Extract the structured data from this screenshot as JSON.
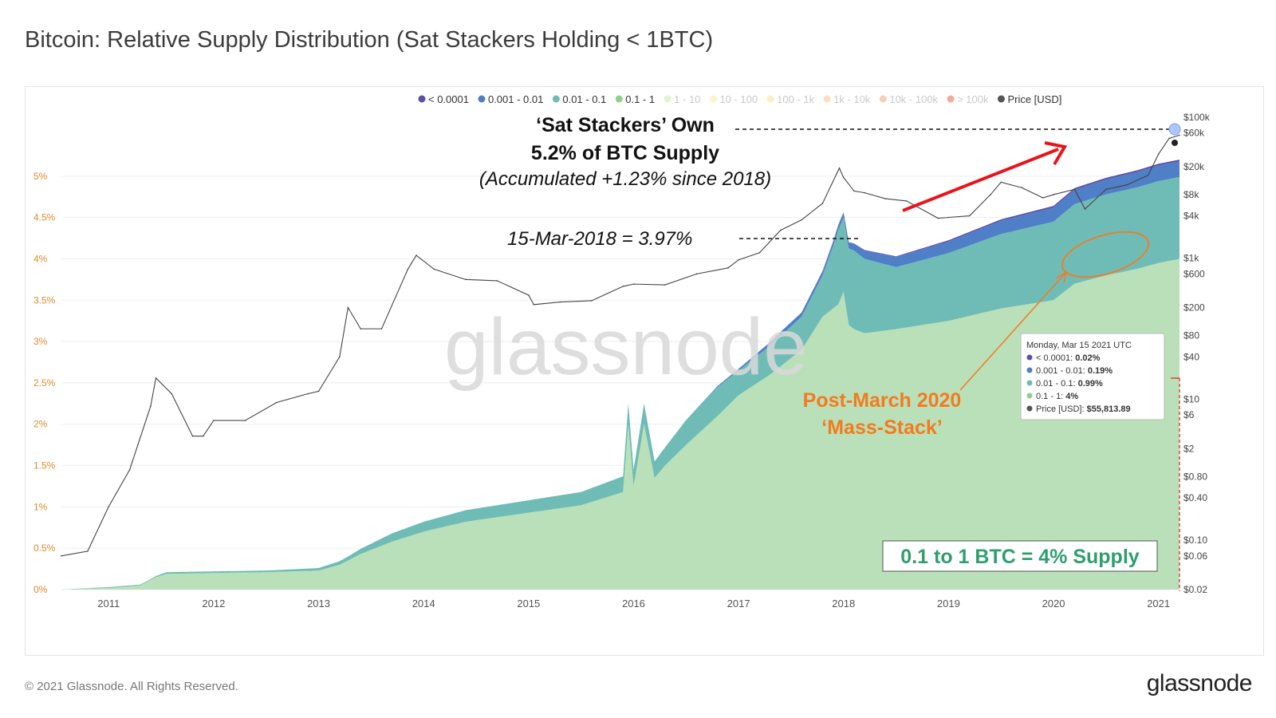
{
  "title": "Bitcoin: Relative Supply Distribution (Sat Stackers Holding < 1BTC)",
  "footer": {
    "copyright": "© 2021 Glassnode. All Rights Reserved.",
    "logo": "glassnode"
  },
  "watermark": "glassnode",
  "colors": {
    "lt_0001": "#5b4fa8",
    "b001_01": "#4f7fc7",
    "b01_1": "#6fbcb6",
    "b1_10": "#a8d8a8",
    "price": "#555555",
    "annotation_red": "#e8141b",
    "annotation_orange": "#f47a1f",
    "annotation_green": "#2f9e6f",
    "left_axis": "#e08a2c"
  },
  "chart_data": {
    "type": "area",
    "legend": [
      {
        "label": "< 0.0001",
        "color": "#5b4fa8",
        "active": true
      },
      {
        "label": "0.001 - 0.01",
        "color": "#4f7fc7",
        "active": true
      },
      {
        "label": "0.01 - 0.1",
        "color": "#6fbcb6",
        "active": true
      },
      {
        "label": "0.1 - 1",
        "color": "#8fd08a",
        "active": true
      },
      {
        "label": "1 - 10",
        "color": "#c9e89b",
        "active": false
      },
      {
        "label": "10 - 100",
        "color": "#f0ee9a",
        "active": false
      },
      {
        "label": "100 - 1k",
        "color": "#f7e08a",
        "active": false
      },
      {
        "label": "1k - 10k",
        "color": "#f5c27a",
        "active": false
      },
      {
        "label": "10k - 100k",
        "color": "#f3a06a",
        "active": false
      },
      {
        "label": "> 100k",
        "color": "#e8553b",
        "active": false
      },
      {
        "label": "Price [USD]",
        "color": "#555555",
        "active": true
      }
    ],
    "x_ticks": [
      "2011",
      "2012",
      "2013",
      "2014",
      "2015",
      "2016",
      "2017",
      "2018",
      "2019",
      "2020",
      "2021"
    ],
    "xlim": [
      2010.55,
      2021.2
    ],
    "left_axis": {
      "ticks": [
        "0%",
        "0.5%",
        "1%",
        "1.5%",
        "2%",
        "2.5%",
        "3%",
        "3.5%",
        "4%",
        "4.5%",
        "5%"
      ],
      "ylim": [
        0,
        5.5
      ]
    },
    "right_axis": {
      "scale": "log",
      "ticks": [
        "$0.02",
        "$0.06",
        "$0.10",
        "$0.40",
        "$0.80",
        "$2",
        "$6",
        "$10",
        "$40",
        "$80",
        "$200",
        "$600",
        "$1k",
        "$4k",
        "$8k",
        "$20k",
        "$60k",
        "$100k"
      ]
    },
    "series": [
      {
        "name": "0.1 - 1",
        "unit": "%",
        "x": [
          2010.55,
          2011.0,
          2011.3,
          2011.45,
          2011.55,
          2012.0,
          2012.5,
          2013.0,
          2013.2,
          2013.4,
          2013.7,
          2014.0,
          2014.4,
          2015.0,
          2015.5,
          2015.9,
          2015.95,
          2016.0,
          2016.1,
          2016.2,
          2016.3,
          2016.5,
          2016.8,
          2017.0,
          2017.3,
          2017.6,
          2017.8,
          2017.95,
          2018.0,
          2018.05,
          2018.1,
          2018.2,
          2018.5,
          2019.0,
          2019.5,
          2020.0,
          2020.2,
          2020.5,
          2020.8,
          2021.0,
          2021.2
        ],
        "values": [
          0,
          0.02,
          0.05,
          0.15,
          0.19,
          0.2,
          0.21,
          0.23,
          0.3,
          0.43,
          0.58,
          0.7,
          0.82,
          0.93,
          1.02,
          1.18,
          2.0,
          1.25,
          2.0,
          1.35,
          1.5,
          1.75,
          2.1,
          2.35,
          2.6,
          2.9,
          3.3,
          3.45,
          3.6,
          3.2,
          3.15,
          3.1,
          3.15,
          3.25,
          3.4,
          3.5,
          3.7,
          3.8,
          3.88,
          3.95,
          4.0
        ]
      },
      {
        "name": "0.01 - 0.1",
        "unit": "%",
        "x": [
          2010.55,
          2011.0,
          2011.4,
          2011.55,
          2012.0,
          2012.5,
          2013.0,
          2013.3,
          2013.7,
          2014.0,
          2014.4,
          2015.0,
          2015.5,
          2015.9,
          2015.95,
          2016.0,
          2016.1,
          2016.2,
          2016.3,
          2016.5,
          2016.8,
          2017.0,
          2017.3,
          2017.6,
          2017.8,
          2017.9,
          2017.95,
          2018.0,
          2018.1,
          2018.2,
          2018.5,
          2019.0,
          2019.5,
          2020.0,
          2020.5,
          2021.0,
          2021.2
        ],
        "values": [
          0,
          0.01,
          0.01,
          0.02,
          0.02,
          0.02,
          0.03,
          0.05,
          0.1,
          0.12,
          0.14,
          0.15,
          0.16,
          0.19,
          0.25,
          0.2,
          0.25,
          0.2,
          0.22,
          0.3,
          0.35,
          0.3,
          0.35,
          0.4,
          0.5,
          0.75,
          0.9,
          0.9,
          0.95,
          0.9,
          0.75,
          0.82,
          0.9,
          0.95,
          0.98,
          0.99,
          0.99
        ]
      },
      {
        "name": "0.001 - 0.01",
        "unit": "%",
        "x": [
          2010.55,
          2016.5,
          2017.0,
          2017.4,
          2017.8,
          2018.0,
          2018.2,
          2018.5,
          2019.0,
          2019.5,
          2020.0,
          2020.5,
          2021.0,
          2021.2
        ],
        "values": [
          0,
          0,
          0.02,
          0.05,
          0.05,
          0.06,
          0.1,
          0.12,
          0.14,
          0.16,
          0.17,
          0.18,
          0.19,
          0.19
        ]
      },
      {
        "name": "< 0.0001",
        "unit": "%",
        "x": [
          2010.55,
          2017.5,
          2018.0,
          2018.5,
          2019.0,
          2020.0,
          2021.0,
          2021.2
        ],
        "values": [
          0,
          0,
          0.005,
          0.01,
          0.015,
          0.02,
          0.02,
          0.02
        ]
      },
      {
        "name": "Price [USD]",
        "unit": "USD",
        "x": [
          2010.55,
          2010.8,
          2011.0,
          2011.2,
          2011.4,
          2011.45,
          2011.6,
          2011.8,
          2011.9,
          2012.0,
          2012.3,
          2012.6,
          2012.9,
          2013.0,
          2013.2,
          2013.28,
          2013.4,
          2013.6,
          2013.85,
          2013.93,
          2014.1,
          2014.4,
          2014.7,
          2015.0,
          2015.05,
          2015.3,
          2015.6,
          2015.9,
          2016.0,
          2016.3,
          2016.6,
          2016.9,
          2017.0,
          2017.2,
          2017.4,
          2017.6,
          2017.8,
          2017.96,
          2018.0,
          2018.1,
          2018.2,
          2018.4,
          2018.6,
          2018.9,
          2019.0,
          2019.2,
          2019.4,
          2019.5,
          2019.7,
          2019.9,
          2020.0,
          2020.2,
          2020.3,
          2020.5,
          2020.7,
          2020.9,
          2021.0,
          2021.1,
          2021.2
        ],
        "values": [
          0.06,
          0.07,
          0.3,
          1,
          8,
          20,
          12,
          3,
          3,
          5,
          5,
          9,
          12,
          13,
          40,
          200,
          100,
          100,
          700,
          1100,
          700,
          500,
          480,
          300,
          220,
          240,
          250,
          400,
          430,
          420,
          600,
          730,
          950,
          1200,
          2500,
          3500,
          6000,
          19000,
          14000,
          9000,
          8500,
          7000,
          6500,
          3700,
          3800,
          4000,
          8000,
          12000,
          10000,
          7200,
          8000,
          9500,
          5000,
          9500,
          11000,
          15000,
          30000,
          50000,
          55800
        ]
      }
    ],
    "annotations": {
      "sat_stackers_line1": "‘Sat Stackers’ Own",
      "sat_stackers_line2": "5.2% of BTC Supply",
      "sat_stackers_line3": "(Accumulated +1.23% since 2018)",
      "mar2018": "15-Mar-2018 = 3.97%",
      "post_march_line1": "Post-March 2020",
      "post_march_line2": "‘Mass-Stack’",
      "supply_box": "0.1 to 1 BTC = 4% Supply"
    },
    "tooltip": {
      "date": "Monday, Mar 15 2021 UTC",
      "rows": [
        {
          "label": "< 0.0001:",
          "value": "0.02%",
          "color": "#5b4fa8"
        },
        {
          "label": "0.001 - 0.01:",
          "value": "0.19%",
          "color": "#4f7fc7"
        },
        {
          "label": "0.01 - 0.1:",
          "value": "0.99%",
          "color": "#6fbcb6"
        },
        {
          "label": "0.1 - 1:",
          "value": "4%",
          "color": "#8fd08a"
        },
        {
          "label": "Price [USD]:",
          "value": "$55,813.89",
          "color": "#555555"
        }
      ]
    }
  }
}
